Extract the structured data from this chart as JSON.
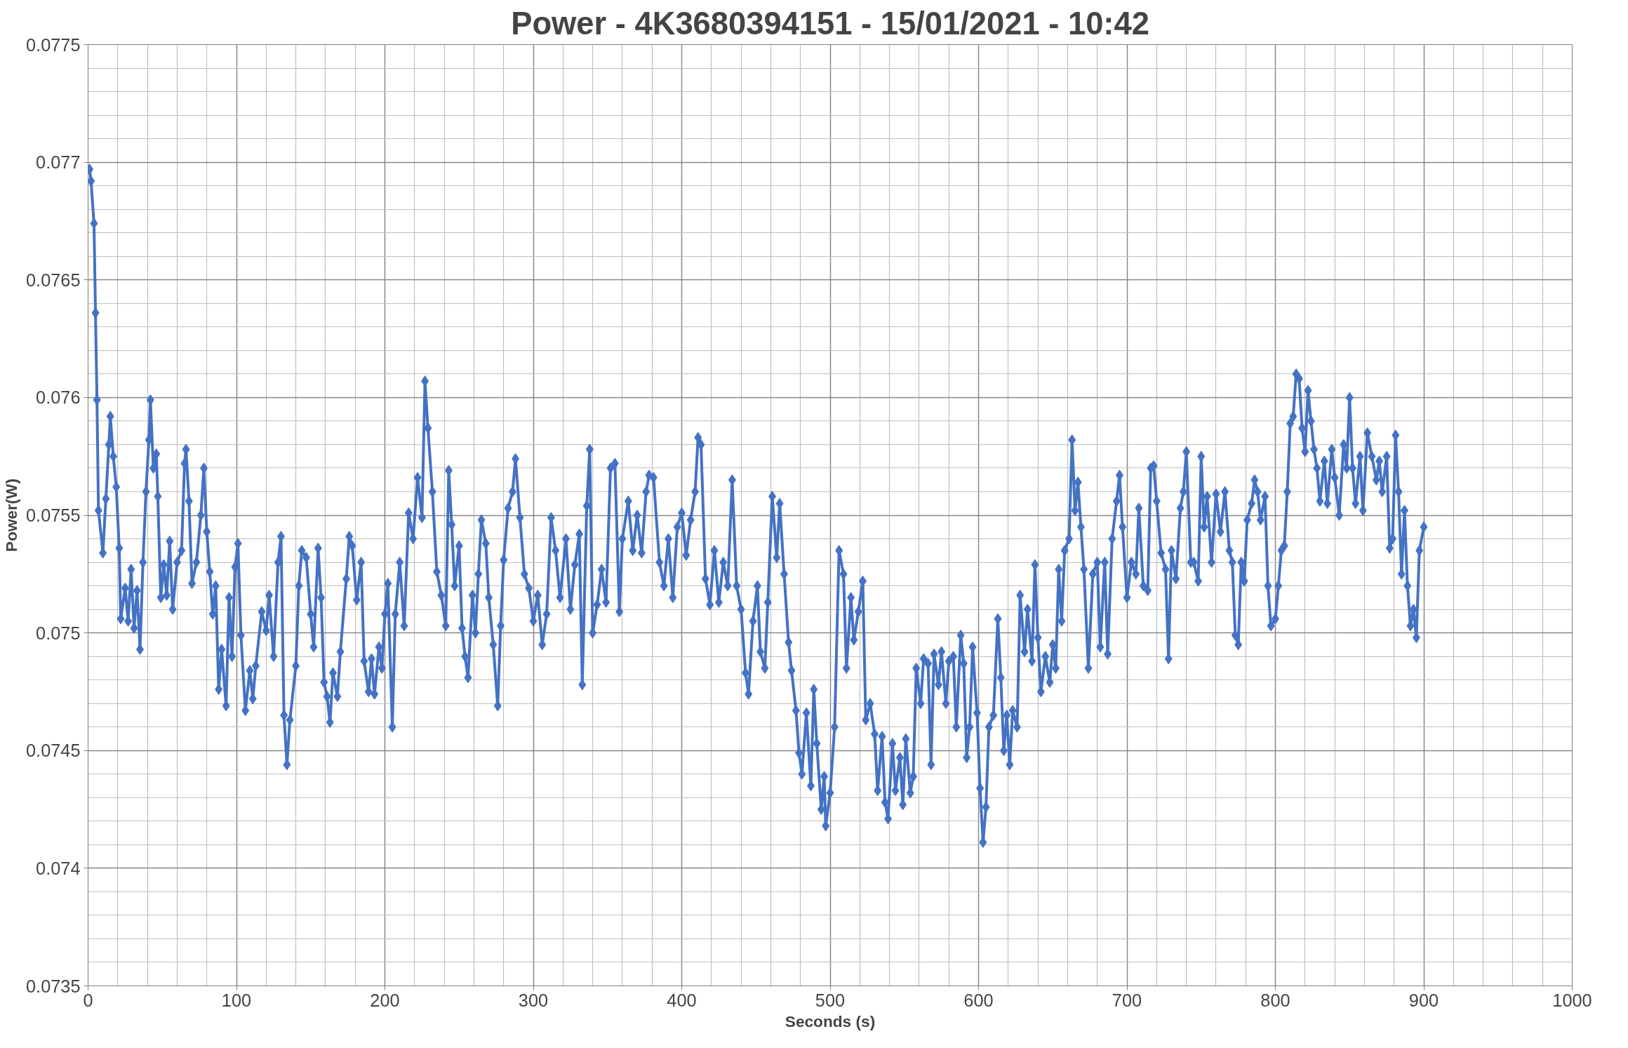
{
  "chart_data": {
    "type": "line",
    "title": "Power - 4K3680394151 - 15/01/2021 - 10:42",
    "xlabel": "Seconds (s)",
    "ylabel": "Power(W)",
    "xlim": [
      0,
      1000
    ],
    "xticks": [
      0,
      100,
      200,
      300,
      400,
      500,
      600,
      700,
      800,
      900,
      1000
    ],
    "ylim": [
      0.0735,
      0.0775
    ],
    "yticks": [
      0.0735,
      0.074,
      0.0745,
      0.075,
      0.0755,
      0.076,
      0.0765,
      0.077,
      0.0775
    ],
    "grid": true,
    "marker": "diamond",
    "line_style": "solid",
    "series": [
      {
        "color": "#4472c4",
        "x": [
          1,
          2,
          4,
          5,
          6,
          7,
          10,
          12,
          14,
          15,
          17,
          19,
          21,
          22,
          25,
          27,
          29,
          31,
          33,
          35,
          37,
          39,
          41,
          42,
          44,
          46,
          47,
          49,
          51,
          53,
          55,
          57,
          60,
          63,
          65,
          66,
          68,
          70,
          73,
          76,
          78,
          80,
          82,
          84,
          86,
          88,
          90,
          93,
          95,
          97,
          99,
          101,
          103,
          106,
          109,
          111,
          113,
          117,
          120,
          122,
          125,
          128,
          130,
          132,
          134,
          136,
          140,
          142,
          144,
          147,
          150,
          152,
          155,
          157,
          159,
          161,
          163,
          165,
          168,
          170,
          174,
          176,
          178,
          181,
          184,
          186,
          189,
          191,
          193,
          196,
          198,
          200,
          202,
          205,
          207,
          210,
          213,
          216,
          219,
          222,
          225,
          227,
          229,
          232,
          235,
          238,
          241,
          243,
          245,
          247,
          250,
          252,
          254,
          256,
          259,
          261,
          263,
          265,
          268,
          270,
          273,
          276,
          278,
          280,
          283,
          286,
          288,
          291,
          294,
          297,
          300,
          303,
          306,
          309,
          312,
          315,
          318,
          322,
          325,
          328,
          331,
          333,
          336,
          338,
          340,
          343,
          346,
          349,
          352,
          355,
          358,
          360,
          364,
          367,
          370,
          373,
          376,
          378,
          381,
          385,
          388,
          391,
          394,
          397,
          400,
          403,
          406,
          409,
          411,
          413,
          416,
          419,
          422,
          425,
          428,
          431,
          434,
          437,
          440,
          443,
          445,
          448,
          451,
          453,
          456,
          458,
          461,
          464,
          466,
          469,
          472,
          474,
          477,
          479,
          481,
          484,
          487,
          489,
          491,
          494,
          496,
          497,
          500,
          503,
          506,
          509,
          511,
          514,
          516,
          519,
          522,
          524,
          527,
          530,
          532,
          535,
          537,
          539,
          542,
          544,
          547,
          549,
          551,
          554,
          556,
          558,
          561,
          563,
          566,
          568,
          570,
          573,
          575,
          578,
          580,
          583,
          585,
          588,
          590,
          592,
          594,
          596,
          599,
          601,
          603,
          605,
          607,
          610,
          613,
          615,
          617,
          619,
          621,
          623,
          626,
          628,
          631,
          633,
          636,
          638,
          640,
          642,
          645,
          648,
          650,
          652,
          654,
          656,
          658,
          661,
          663,
          665,
          667,
          669,
          671,
          674,
          677,
          680,
          682,
          685,
          687,
          690,
          693,
          695,
          697,
          700,
          703,
          706,
          708,
          711,
          714,
          716,
          718,
          720,
          723,
          726,
          728,
          730,
          733,
          736,
          738,
          740,
          743,
          745,
          748,
          750,
          752,
          754,
          757,
          760,
          763,
          766,
          769,
          771,
          773,
          775,
          777,
          779,
          781,
          784,
          786,
          788,
          790,
          793,
          795,
          797,
          800,
          802,
          804,
          806,
          808,
          810,
          812,
          814,
          816,
          818,
          820,
          822,
          824,
          826,
          828,
          830,
          833,
          835,
          838,
          840,
          843,
          846,
          848,
          850,
          852,
          854,
          857,
          859,
          862,
          865,
          868,
          870,
          872,
          875,
          877,
          879,
          881,
          883,
          885,
          887,
          889,
          891,
          893,
          895,
          897,
          900
        ],
        "values": [
          0.07697,
          0.07692,
          0.07674,
          0.07636,
          0.07599,
          0.07552,
          0.07534,
          0.07557,
          0.0758,
          0.07592,
          0.07575,
          0.07562,
          0.07536,
          0.07506,
          0.07519,
          0.07505,
          0.07527,
          0.07502,
          0.07518,
          0.07493,
          0.0753,
          0.0756,
          0.07582,
          0.07599,
          0.0757,
          0.07576,
          0.07558,
          0.07515,
          0.07529,
          0.07516,
          0.07539,
          0.0751,
          0.0753,
          0.07535,
          0.07572,
          0.07578,
          0.07556,
          0.07521,
          0.0753,
          0.0755,
          0.0757,
          0.07543,
          0.07526,
          0.07508,
          0.0752,
          0.07476,
          0.07493,
          0.07469,
          0.07515,
          0.0749,
          0.07528,
          0.07538,
          0.07499,
          0.07467,
          0.07484,
          0.07472,
          0.07486,
          0.07509,
          0.07501,
          0.07516,
          0.0749,
          0.0753,
          0.07541,
          0.07465,
          0.07444,
          0.07463,
          0.07486,
          0.0752,
          0.07535,
          0.07532,
          0.07508,
          0.07494,
          0.07536,
          0.07515,
          0.07479,
          0.07473,
          0.07462,
          0.07483,
          0.07473,
          0.07492,
          0.07523,
          0.07541,
          0.07537,
          0.07514,
          0.0753,
          0.07488,
          0.07475,
          0.07489,
          0.07474,
          0.07494,
          0.07485,
          0.07508,
          0.07521,
          0.0746,
          0.07508,
          0.0753,
          0.07503,
          0.07551,
          0.0754,
          0.07566,
          0.07549,
          0.07607,
          0.07587,
          0.0756,
          0.07526,
          0.07516,
          0.07503,
          0.07569,
          0.07546,
          0.0752,
          0.07537,
          0.07502,
          0.0749,
          0.07481,
          0.07516,
          0.075,
          0.07525,
          0.07548,
          0.07538,
          0.07515,
          0.07495,
          0.07469,
          0.07503,
          0.07531,
          0.07553,
          0.0756,
          0.07574,
          0.07549,
          0.07525,
          0.07519,
          0.07505,
          0.07516,
          0.07495,
          0.07508,
          0.07549,
          0.07535,
          0.07515,
          0.0754,
          0.0751,
          0.07529,
          0.07542,
          0.07478,
          0.07554,
          0.07578,
          0.075,
          0.07512,
          0.07527,
          0.07513,
          0.0757,
          0.07572,
          0.07509,
          0.0754,
          0.07556,
          0.07535,
          0.0755,
          0.07534,
          0.0756,
          0.07567,
          0.07566,
          0.0753,
          0.0752,
          0.0754,
          0.07515,
          0.07545,
          0.07551,
          0.07533,
          0.07548,
          0.0756,
          0.07583,
          0.0758,
          0.07523,
          0.07512,
          0.07535,
          0.07513,
          0.0753,
          0.0752,
          0.07565,
          0.0752,
          0.0751,
          0.07483,
          0.07474,
          0.07505,
          0.0752,
          0.07492,
          0.07485,
          0.07513,
          0.07558,
          0.07532,
          0.07555,
          0.07525,
          0.07496,
          0.07484,
          0.07467,
          0.07449,
          0.0744,
          0.07466,
          0.07435,
          0.07476,
          0.07453,
          0.07425,
          0.07439,
          0.07418,
          0.07432,
          0.0746,
          0.07535,
          0.07525,
          0.07485,
          0.07515,
          0.07497,
          0.07509,
          0.07522,
          0.07463,
          0.0747,
          0.07457,
          0.07433,
          0.07456,
          0.07428,
          0.07421,
          0.07453,
          0.07433,
          0.07447,
          0.07427,
          0.07455,
          0.07432,
          0.07439,
          0.07485,
          0.0747,
          0.07489,
          0.07487,
          0.07444,
          0.07491,
          0.07478,
          0.07492,
          0.0747,
          0.07488,
          0.0749,
          0.0746,
          0.07499,
          0.07487,
          0.07447,
          0.0746,
          0.07494,
          0.07466,
          0.07434,
          0.07411,
          0.07426,
          0.0746,
          0.07465,
          0.07506,
          0.07481,
          0.0745,
          0.07465,
          0.07444,
          0.07467,
          0.0746,
          0.07516,
          0.07492,
          0.0751,
          0.07488,
          0.07529,
          0.07498,
          0.07475,
          0.0749,
          0.07479,
          0.07495,
          0.07485,
          0.07527,
          0.07505,
          0.07535,
          0.0754,
          0.07582,
          0.07552,
          0.07564,
          0.07545,
          0.07527,
          0.07485,
          0.07525,
          0.0753,
          0.07494,
          0.0753,
          0.07491,
          0.0754,
          0.07556,
          0.07567,
          0.07545,
          0.07515,
          0.0753,
          0.07525,
          0.07553,
          0.0752,
          0.07518,
          0.0757,
          0.07571,
          0.07556,
          0.07534,
          0.07527,
          0.07489,
          0.07535,
          0.07523,
          0.07553,
          0.0756,
          0.07577,
          0.0753,
          0.0753,
          0.07522,
          0.07575,
          0.07545,
          0.07558,
          0.0753,
          0.07559,
          0.07543,
          0.0756,
          0.07535,
          0.0753,
          0.07499,
          0.07495,
          0.0753,
          0.07522,
          0.07548,
          0.07555,
          0.07565,
          0.0756,
          0.07548,
          0.07558,
          0.0752,
          0.07503,
          0.07506,
          0.0752,
          0.07535,
          0.07537,
          0.0756,
          0.07589,
          0.07592,
          0.0761,
          0.07608,
          0.07587,
          0.07577,
          0.07603,
          0.0759,
          0.07578,
          0.0757,
          0.07556,
          0.07573,
          0.07555,
          0.07578,
          0.07566,
          0.0755,
          0.0758,
          0.0757,
          0.076,
          0.0757,
          0.07555,
          0.07575,
          0.07552,
          0.07585,
          0.07575,
          0.07565,
          0.07573,
          0.0756,
          0.07575,
          0.07536,
          0.0754,
          0.07584,
          0.0756,
          0.07525,
          0.07552,
          0.0752,
          0.07503,
          0.0751,
          0.07498,
          0.07535,
          0.07545
        ]
      }
    ]
  }
}
